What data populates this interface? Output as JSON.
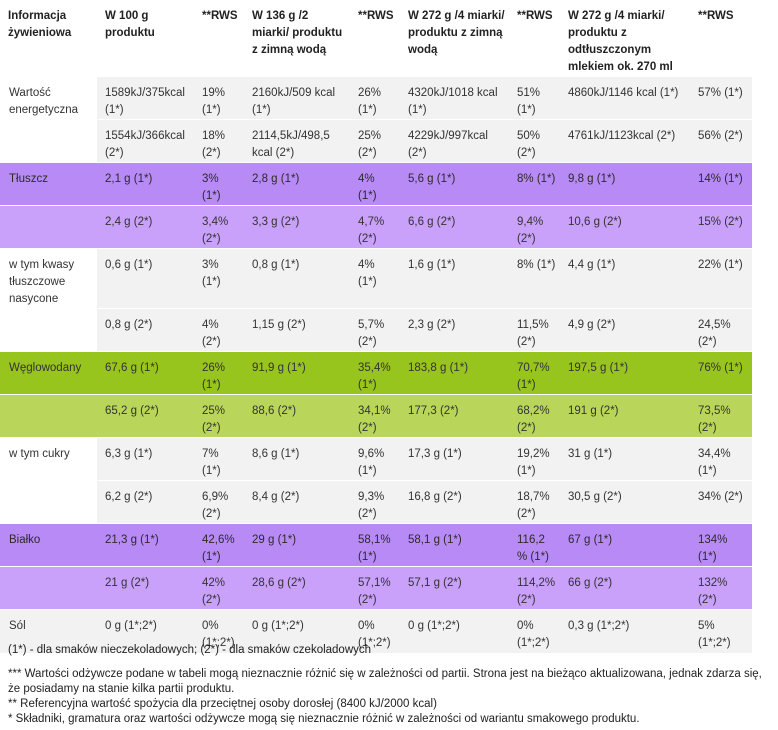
{
  "header": [
    "Informacja żywieniowa",
    "W 100 g produktu",
    "**RWS",
    "W 136 g /2 miarki/ produktu z zimną wodą",
    "**RWS",
    "W 272 g /4 miarki/ produktu z zimną wodą",
    "**RWS",
    "W 272 g /4 miarki/ produktu z odtłuszczonym mlekiem ok. 270 ml",
    "**RWS"
  ],
  "rows": [
    {
      "style": "white",
      "cells": [
        "Wartość energetyczna",
        "1589kJ/375kcal (1*)",
        "19% (1*)",
        "2160kJ/509 kcal (1*)",
        "26% (1*)",
        "4320kJ/1018 kcal (1*)",
        "51% (1*)",
        "4860kJ/1146 kcal (1*)",
        "57% (1*)"
      ]
    },
    {
      "style": "white",
      "cells": [
        "",
        "1554kJ/366kcal (2*)",
        "18% (2*)",
        "2114,5kJ/498,5 kcal (2*)",
        "25% (2*)",
        "4229kJ/997kcal (2*)",
        "50% (2*)",
        "4761kJ/1123kcal (2*)",
        "56% (2*)"
      ]
    },
    {
      "style": "purple",
      "cells": [
        "Tłuszcz",
        "2,1 g (1*)",
        "3% (1*)",
        "2,8 g (1*)",
        "4% (1*)",
        "5,6 g (1*)",
        "8% (1*)",
        "9,8 g (1*)",
        "14% (1*)"
      ]
    },
    {
      "style": "purple-light",
      "cells": [
        "",
        "2,4 g (2*)",
        "3,4% (2*)",
        "3,3 g (2*)",
        "4,7% (2*)",
        "6,6 g (2*)",
        "9,4% (2*)",
        "10,6 g (2*)",
        "15% (2*)"
      ]
    },
    {
      "style": "white",
      "cells": [
        "w tym kwasy tłuszczowe nasycone",
        "0,6 g (1*)",
        "3% (1*)",
        "0,8 g (1*)",
        "4% (1*)",
        "1,6 g (1*)",
        "8% (1*)",
        "4,4  g (1*)",
        "22% (1*)"
      ]
    },
    {
      "style": "white",
      "cells": [
        "",
        "0,8 g (2*)",
        "4% (2*)",
        "1,15 g (2*)",
        "5,7% (2*)",
        "2,3 g (2*)",
        "11,5% (2*)",
        "4,9 g (2*)",
        "24,5% (2*)"
      ]
    },
    {
      "style": "green",
      "cells": [
        "Węglowodany",
        "67,6 g (1*)",
        "26% (1*)",
        "91,9  g (1*)",
        "35,4% (1*)",
        "183,8  g (1*)",
        "70,7% (1*)",
        "197,5  g (1*)",
        "76% (1*)"
      ]
    },
    {
      "style": "green-light",
      "cells": [
        "",
        "65,2 g (2*)",
        "25% (2*)",
        "88,6 (2*)",
        "34,1% (2*)",
        "177,3 (2*)",
        "68,2% (2*)",
        "191 g (2*)",
        "73,5% (2*)"
      ]
    },
    {
      "style": "white",
      "cells": [
        "w tym cukry",
        "6,3 g (1*)",
        "7% (1*)",
        "8,6 g (1*)",
        "9,6% (1*)",
        "17,3 g (1*)",
        "19,2% (1*)",
        "31  g (1*)",
        "34,4% (1*)"
      ]
    },
    {
      "style": "white",
      "cells": [
        "",
        "6,2 g (2*)",
        "6,9% (2*)",
        "8,4 g (2*)",
        "9,3% (2*)",
        "16,8 g (2*)",
        "18,7% (2*)",
        "30,5 g (2*)",
        "34% (2*)"
      ]
    },
    {
      "style": "purple",
      "cells": [
        "Białko",
        "21,3 g (1*)",
        "42,6% (1*)",
        "29  g (1*)",
        "58,1% (1*)",
        "58,1 g (1*)",
        "116,2 % (1*)",
        "67 g (1*)",
        "134% (1*)"
      ]
    },
    {
      "style": "purple-light",
      "cells": [
        "",
        "21 g (2*)",
        "42% (2*)",
        "28,6 g (2*)",
        "57,1% (2*)",
        "57,1 g (2*)",
        "114,2% (2*)",
        "66 g (2*)",
        "132% (2*)"
      ]
    },
    {
      "style": "gray",
      "cells": [
        "Sól",
        "0 g (1*;2*)",
        "0% (1*;2*)",
        "0 g (1*;2*)",
        "0% (1*;2*)",
        "0 g (1*;2*)",
        "0% (1*;2*)",
        "0,3 g (1*;2*)",
        "5% (1*;2*)"
      ]
    }
  ],
  "footnotes": {
    "flavors": "(1*) - dla smaków nieczekoladowych; (2*) - dla smaków czekoladowych",
    "partial": "*** Wartości odżywcze podane w tabeli mogą nieznacznie różnić się w zależności od partii. Strona jest na bieżąco aktualizowana, jednak zdarza się, że posiadamy na stanie kilka partii produktu.",
    "rws": "** Referencyjna wartość spożycia dla przeciętnej osoby dorosłej (8400 kJ/2000 kcal)",
    "variant": "* Składniki, gramatura oraz wartości odżywcze mogą się nieznacznie różnić w zależności od wariantu smakowego produktu."
  },
  "colors": {
    "purple": "#b88af5",
    "purple_light": "#c9a0fa",
    "green": "#98c41e",
    "green_light": "#b9d65a",
    "gray": "#f2f2f2"
  }
}
